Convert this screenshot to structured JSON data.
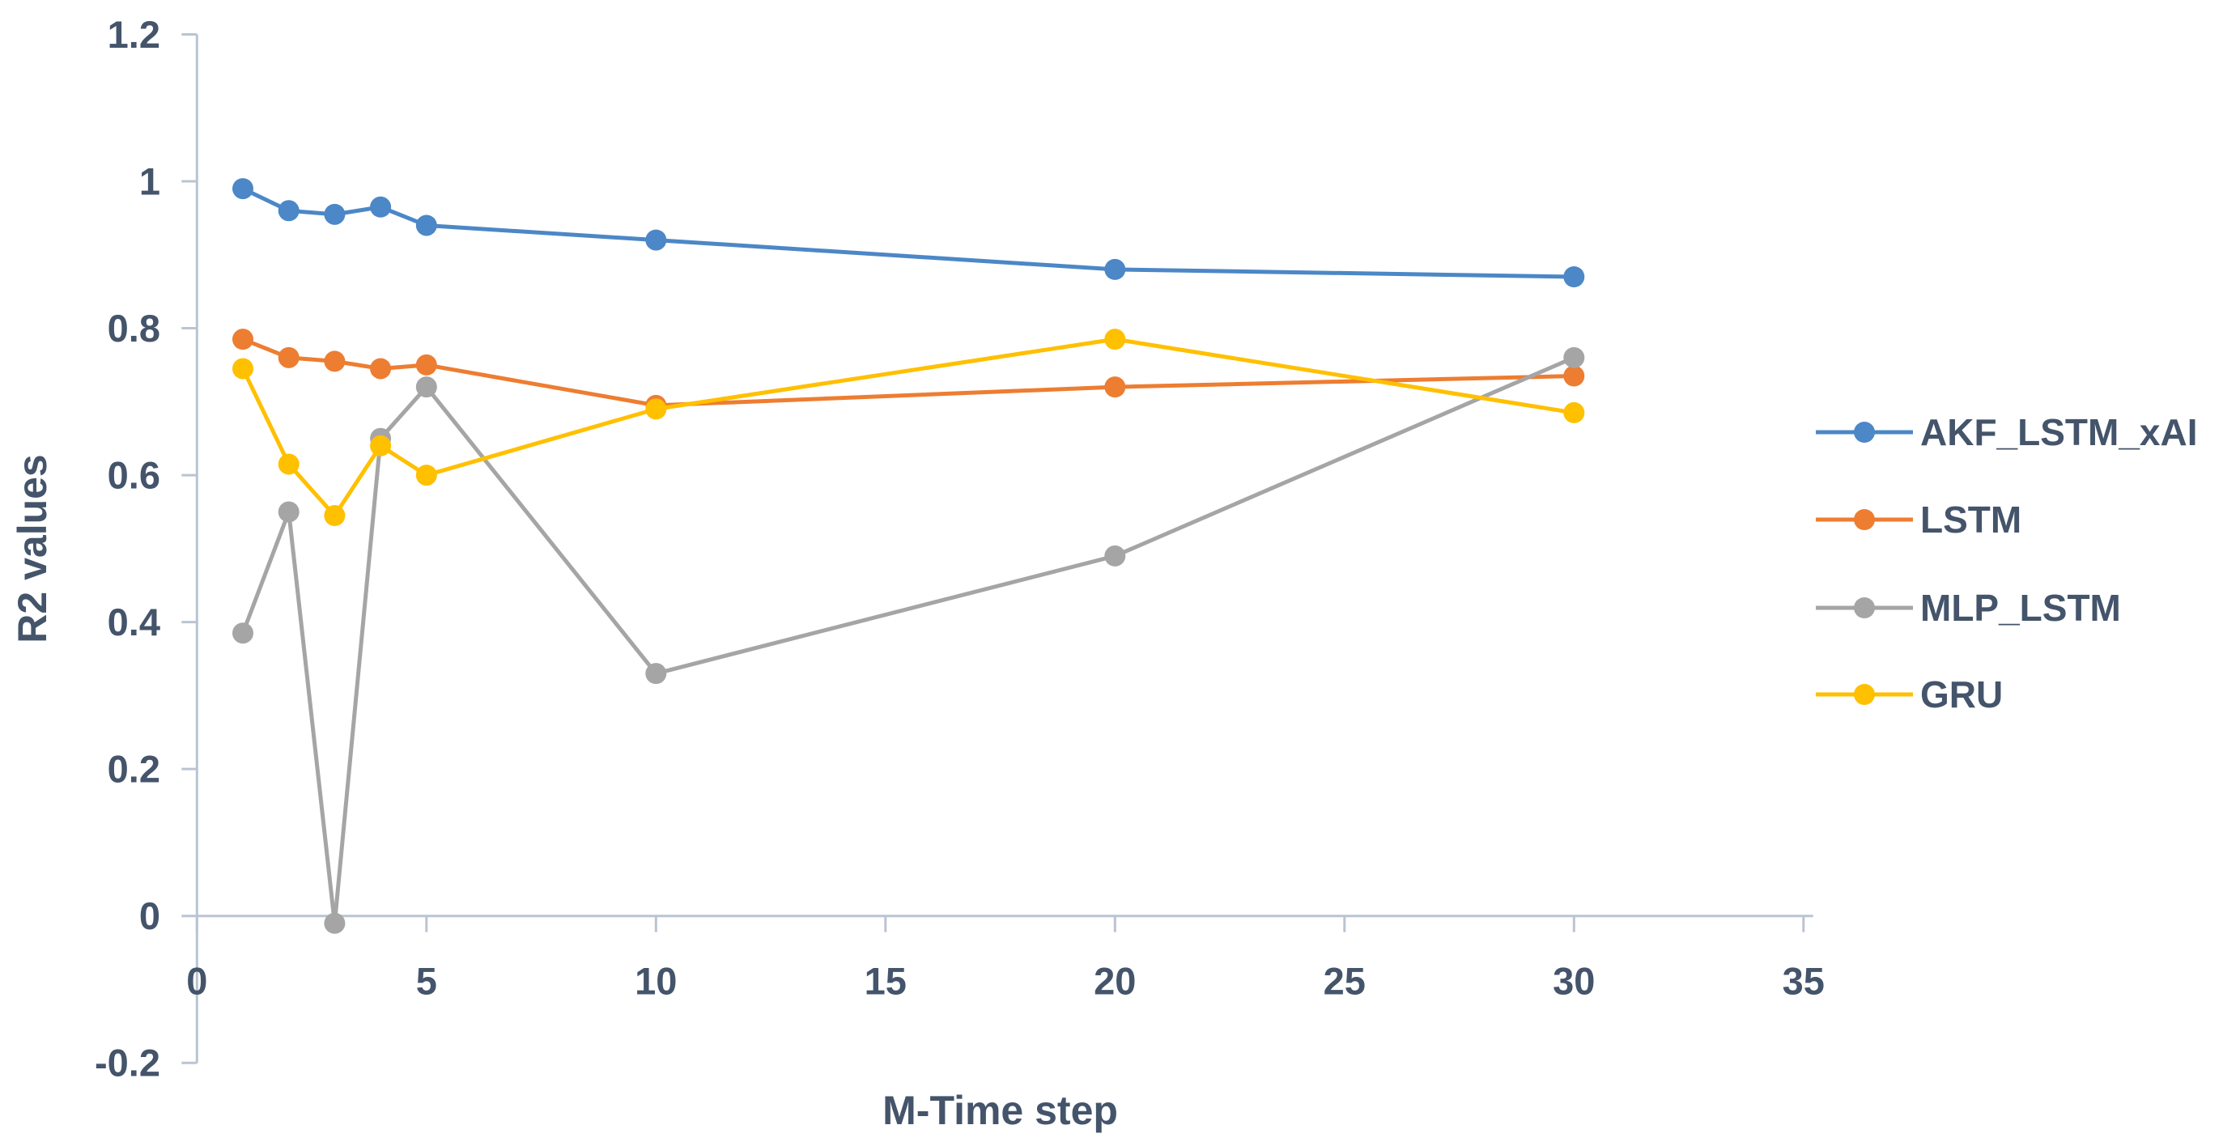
{
  "chart_data": {
    "type": "line",
    "title": "",
    "xlabel": "M-Time step",
    "ylabel": "R2 values",
    "x": [
      1,
      2,
      3,
      4,
      5,
      10,
      20,
      30
    ],
    "series": [
      {
        "name": "AKF_LSTM_xAI",
        "color": "#4C87C7",
        "values": [
          0.99,
          0.96,
          0.955,
          0.965,
          0.94,
          0.92,
          0.88,
          0.87
        ]
      },
      {
        "name": "LSTM",
        "color": "#ED7D31",
        "values": [
          0.785,
          0.76,
          0.755,
          0.745,
          0.75,
          0.695,
          0.72,
          0.735
        ]
      },
      {
        "name": "MLP_LSTM",
        "color": "#A5A5A5",
        "values": [
          0.385,
          0.55,
          -0.01,
          0.65,
          0.72,
          0.33,
          0.49,
          0.76
        ]
      },
      {
        "name": "GRU",
        "color": "#FFC000",
        "values": [
          0.745,
          0.615,
          0.545,
          0.64,
          0.6,
          0.69,
          0.785,
          0.685
        ]
      }
    ],
    "xlim": [
      0,
      35
    ],
    "ylim": [
      -0.2,
      1.2
    ],
    "x_ticks": [
      0,
      5,
      10,
      15,
      20,
      25,
      30,
      35
    ],
    "y_ticks": [
      -0.2,
      0,
      0.2,
      0.4,
      0.6,
      0.8,
      1,
      1.2
    ],
    "grid": false,
    "legend_position": "right",
    "marker": "circle",
    "axis_color": "#bac4d2",
    "text_color": "#44546A",
    "background": "#ffffff"
  }
}
